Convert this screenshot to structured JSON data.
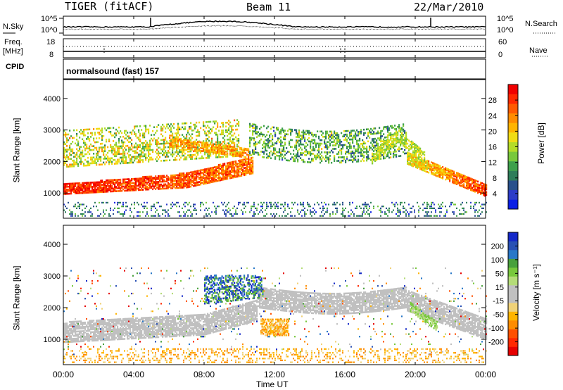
{
  "header": {
    "title": "TIGER (fitACF)",
    "beam": "Beam 11",
    "date": "22/Mar/2010"
  },
  "strip1": {
    "left_label": "N.Sky",
    "right_label": "N.Search",
    "left_ticks": [
      "10^5",
      "10^0"
    ],
    "right_ticks": [
      "10^5",
      "10^0"
    ]
  },
  "strip2": {
    "left_label_1": "Freq.",
    "left_label_2": "[MHz]",
    "right_label": "Nave",
    "left_ticks": [
      "18",
      "8"
    ],
    "right_ticks": [
      "60",
      "0"
    ]
  },
  "strip3": {
    "left_label": "CPID",
    "mode_text": "normalsound (fast) 157"
  },
  "chart_data": [
    {
      "type": "heatmap",
      "ylabel": "Slant Range [km]",
      "y_ticks": [
        1000,
        2000,
        3000,
        4000
      ],
      "ylim": [
        200,
        4600
      ],
      "colorbar": {
        "label": "Power [dB]",
        "ticks": [
          "4",
          "8",
          "12",
          "16",
          "20",
          "24",
          "28"
        ],
        "range": [
          0,
          32
        ],
        "colors": [
          "#0a1ee6",
          "#2d3cc8",
          "#28508c",
          "#2e7d5a",
          "#3ea04c",
          "#78c83c",
          "#b4dc28",
          "#f0dc14",
          "#ffb400",
          "#ff8c00",
          "#ff5a00",
          "#ff2800",
          "#f00000"
        ]
      }
    },
    {
      "type": "heatmap",
      "ylabel": "Slant Range [km]",
      "y_ticks": [
        1000,
        2000,
        3000,
        4000
      ],
      "ylim": [
        200,
        4600
      ],
      "colorbar": {
        "label": "Velocity [m s⁻¹]",
        "ticks": [
          "200",
          "100",
          "50",
          "15",
          "-15",
          "-50",
          "-100",
          "-200"
        ],
        "colors": [
          "#1428c8",
          "#2850b4",
          "#2878c8",
          "#48a03c",
          "#78c83c",
          "#b4dc78",
          "#c0c0c0",
          "#c0c0c0",
          "#f0d278",
          "#ffb400",
          "#ff8c00",
          "#ff5000",
          "#ff2800",
          "#e60000"
        ]
      }
    }
  ],
  "x_axis": {
    "ticks": [
      "00:00",
      "04:00",
      "08:00",
      "12:00",
      "16:00",
      "20:00",
      "00:00"
    ],
    "xlabel": "Time UT"
  }
}
